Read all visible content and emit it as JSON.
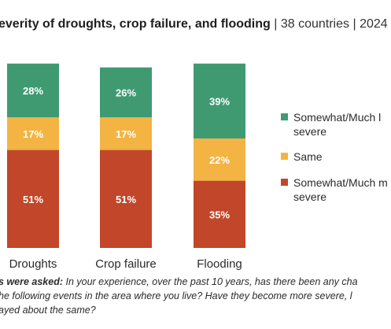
{
  "title": {
    "main": "everity of droughts, crop failure, and flooding",
    "separator1": " | ",
    "countries": "38 countries",
    "separator2": " | ",
    "year": "2024"
  },
  "chart_data": {
    "type": "bar",
    "stacked": true,
    "categories": [
      "Droughts",
      "Crop failure",
      "Flooding"
    ],
    "ylim": [
      0,
      100
    ],
    "series": [
      {
        "name": "Somewhat/Much less severe",
        "values": [
          28,
          26,
          39
        ],
        "color": "#3f9a72"
      },
      {
        "name": "Same",
        "values": [
          17,
          17,
          22
        ],
        "color": "#f3b443"
      },
      {
        "name": "Somewhat/Much more severe",
        "values": [
          51,
          51,
          35
        ],
        "color": "#c2462a"
      }
    ],
    "legend_position": "right",
    "grid": false
  },
  "legend": [
    {
      "text_line1": "Somewhat/Much l",
      "text_line2": "severe",
      "color": "#3f9a72"
    },
    {
      "text_line1": "Same",
      "text_line2": "",
      "color": "#f3b443"
    },
    {
      "text_line1": "Somewhat/Much m",
      "text_line2": "severe",
      "color": "#c2462a"
    }
  ],
  "question": {
    "lead": "s were asked:",
    "line1": " In your experience, over the past 10 years, has there been any cha",
    "line2": "he following events in the area where you live? Have they become more severe, l",
    "line3": "ayed about the same?"
  }
}
